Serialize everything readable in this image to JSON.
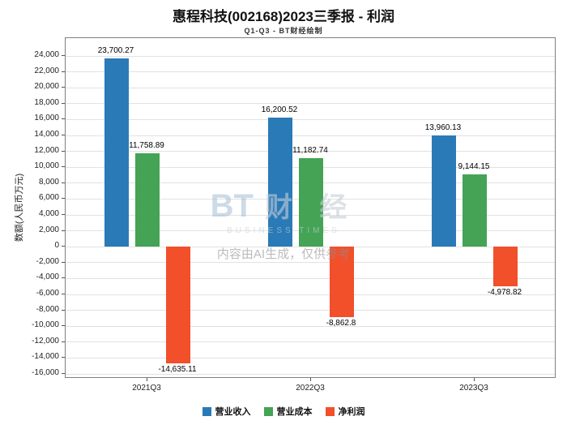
{
  "chart_data": {
    "type": "bar",
    "title": "惠程科技(002168)2023三季报 - 利润",
    "subtitle": "Q1-Q3 - BT财经绘制",
    "categories": [
      "2021Q3",
      "2022Q3",
      "2023Q3"
    ],
    "series": [
      {
        "name": "营业收入",
        "color": "#2A7AB8",
        "values": [
          23700.27,
          16200.52,
          13960.13
        ],
        "labels": [
          "23,700.27",
          "16,200.52",
          "13,960.13"
        ]
      },
      {
        "name": "营业成本",
        "color": "#44A355",
        "values": [
          11758.89,
          11182.74,
          9144.15
        ],
        "labels": [
          "11,758.89",
          "11,182.74",
          "9,144.15"
        ]
      },
      {
        "name": "净利润",
        "color": "#F1502B",
        "values": [
          -14635.11,
          -8862.8,
          -4978.82
        ],
        "labels": [
          "-14,635.11",
          "-8,862.8",
          "-4,978.82"
        ]
      }
    ],
    "xlabel": "",
    "ylabel": "数额(人民币万元)",
    "ylim": [
      -16000,
      24000
    ],
    "ytick_step": 2000,
    "grid": true,
    "legend_position": "bottom"
  },
  "watermark": {
    "logo_bt": "BT",
    "logo_cn": "财 经",
    "logo_sub": "BUSINESS TIMES",
    "notice": "内容由AI生成，仅供参考"
  }
}
